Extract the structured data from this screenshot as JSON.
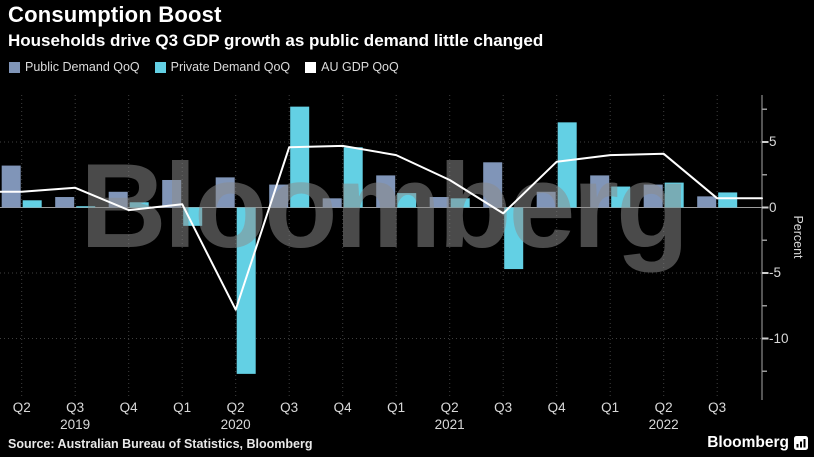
{
  "header": {
    "title": "Consumption Boost",
    "subtitle": "Households drive Q3 GDP growth as public demand little changed"
  },
  "legend": [
    {
      "label": "Public Demand QoQ",
      "color": "#8095b8"
    },
    {
      "label": "Private Demand QoQ",
      "color": "#63d0e4"
    },
    {
      "label": "AU GDP QoQ",
      "color": "#ffffff"
    }
  ],
  "watermark": "Bloomberg",
  "footer": {
    "source": "Source: Australian Bureau of Statistics, Bloomberg",
    "brand": "Bloomberg"
  },
  "colors": {
    "background": "#000000",
    "public_bar": "#8095b8",
    "private_bar": "#63d0e4",
    "gdp_line": "#ffffff",
    "gridline": "#3f3f3f",
    "zero_line": "#9c9c9c",
    "axis_line": "#a8a8a8",
    "tick_label": "#d9d9d9"
  },
  "chart_data": {
    "type": "bar+line",
    "title": "Consumption Boost",
    "subtitle": "Households drive Q3 GDP growth as public demand little changed",
    "ylabel": "Percent",
    "y_unit": "percent QoQ",
    "ylim": [
      -14.5,
      8.6
    ],
    "grid": "dotted, vertical at each quarter and horizontal at 5 / -5 / -10, solid zero line",
    "legend_position": "top-left",
    "categories": [
      "Q2 2019",
      "Q3 2019",
      "Q4 2019",
      "Q1 2020",
      "Q2 2020",
      "Q3 2020",
      "Q4 2020",
      "Q1 2021",
      "Q2 2021",
      "Q3 2021",
      "Q4 2021",
      "Q1 2022",
      "Q2 2022",
      "Q3 2022"
    ],
    "x_tick_labels": [
      "Q2",
      "Q3",
      "Q4",
      "Q1",
      "Q2",
      "Q3",
      "Q4",
      "Q1",
      "Q2",
      "Q3",
      "Q4",
      "Q1",
      "Q2",
      "Q3"
    ],
    "year_labels": [
      {
        "text": "2019",
        "index": 1
      },
      {
        "text": "2020",
        "index": 4
      },
      {
        "text": "2021",
        "index": 8
      },
      {
        "text": "2022",
        "index": 12
      }
    ],
    "y_axis": {
      "label": "Percent",
      "major_ticks": [
        5,
        0,
        -5,
        -10
      ],
      "minor_ticks": [
        7.5,
        2.5,
        -2.5,
        -7.5,
        -12.5
      ],
      "gridlines": [
        5,
        -5,
        -10
      ]
    },
    "series": [
      {
        "name": "Public Demand QoQ",
        "type": "bar",
        "color": "#8095b8",
        "values": [
          3.2,
          0.8,
          1.2,
          2.1,
          2.3,
          1.75,
          0.7,
          2.45,
          0.8,
          3.45,
          1.2,
          2.45,
          1.75,
          0.85
        ]
      },
      {
        "name": "Private Demand QoQ",
        "type": "bar",
        "color": "#63d0e4",
        "values": [
          0.55,
          0.1,
          0.4,
          -1.4,
          -12.7,
          7.7,
          4.6,
          1.1,
          0.7,
          -4.7,
          6.5,
          1.6,
          1.9,
          1.15
        ]
      },
      {
        "name": "AU GDP QoQ",
        "type": "line",
        "color": "#ffffff",
        "values": [
          1.2,
          1.5,
          -0.2,
          0.25,
          -7.8,
          4.6,
          4.7,
          4.0,
          2.1,
          -0.45,
          3.5,
          4.0,
          4.1,
          0.7
        ]
      }
    ]
  }
}
